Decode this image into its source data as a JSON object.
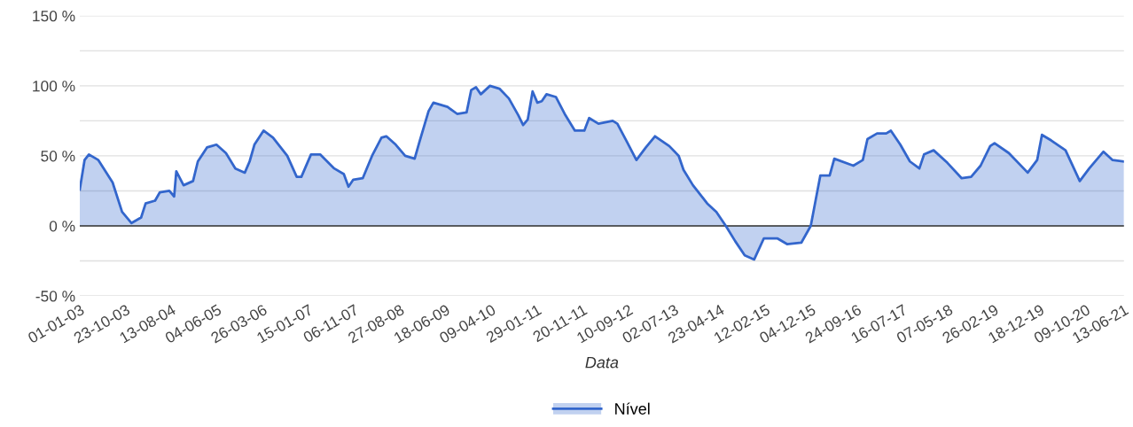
{
  "chart_data": {
    "type": "area",
    "xlabel": "Data",
    "legend": "bottom",
    "grid": "y",
    "x": [
      "2003-01-01",
      "2003-02",
      "2003-03",
      "2003-05",
      "2003-08",
      "2003-10",
      "2003-12",
      "2004-02",
      "2004-03",
      "2004-05",
      "2004-06",
      "2004-08",
      "2004-09-01",
      "2004-09-15",
      "2004-11",
      "2005-01",
      "2005-02",
      "2005-04",
      "2005-05",
      "2005-06",
      "2005-08",
      "2005-10",
      "2005-12",
      "2006-01",
      "2006-02",
      "2006-04",
      "2006-06",
      "2006-09",
      "2006-11",
      "2006-12",
      "2007-02",
      "2007-04",
      "2007-07",
      "2007-09",
      "2007-10",
      "2007-11",
      "2008-01",
      "2008-03",
      "2008-05",
      "2008-06",
      "2008-08",
      "2008-10",
      "2008-12",
      "2009-01",
      "2009-03",
      "2009-04",
      "2009-07",
      "2009-09",
      "2009-11",
      "2009-12",
      "2010-01",
      "2010-02",
      "2010-04",
      "2010-06",
      "2010-08",
      "2010-10",
      "2010-11",
      "2010-12",
      "2011-01",
      "2011-02",
      "2011-03",
      "2011-04",
      "2011-06",
      "2011-08",
      "2011-10",
      "2011-12",
      "2012-01",
      "2012-03",
      "2012-06",
      "2012-07",
      "2012-09",
      "2012-11",
      "2013-01",
      "2013-03",
      "2013-06",
      "2013-08",
      "2013-09",
      "2013-11",
      "2014-02",
      "2014-04",
      "2014-06",
      "2014-08",
      "2014-10",
      "2014-12",
      "2015-02",
      "2015-05",
      "2015-07",
      "2015-10",
      "2015-12",
      "2016-01",
      "2016-02",
      "2016-04",
      "2016-05",
      "2016-09",
      "2016-11",
      "2016-12",
      "2017-02",
      "2017-04",
      "2017-05",
      "2017-07",
      "2017-09",
      "2017-11",
      "2017-12",
      "2018-02",
      "2018-05",
      "2018-08",
      "2018-10",
      "2018-12",
      "2019-02",
      "2019-03",
      "2019-06",
      "2019-10",
      "2019-12",
      "2020-01",
      "2020-03",
      "2020-06",
      "2020-09",
      "2020-11",
      "2021-02",
      "2021-04",
      "2021-06-13"
    ],
    "series": [
      {
        "name": "Nível",
        "color": "#3366cc",
        "values": [
          26,
          47,
          51,
          47,
          31,
          10,
          2,
          6,
          16,
          18,
          24,
          25,
          21,
          39,
          29,
          32,
          46,
          56,
          57,
          58,
          52,
          41,
          38,
          46,
          58,
          68,
          63,
          50,
          35,
          35,
          51,
          51,
          41,
          37,
          28,
          33,
          34,
          50,
          63,
          64,
          58,
          50,
          48,
          60,
          82,
          88,
          85,
          80,
          81,
          97,
          99,
          94,
          100,
          98,
          91,
          79,
          72,
          76,
          96,
          88,
          89,
          94,
          92,
          79,
          68,
          68,
          77,
          73,
          75,
          73,
          60,
          47,
          56,
          64,
          57,
          50,
          40,
          29,
          16,
          10,
          0,
          -11,
          -21,
          -24,
          -9,
          -9,
          -13,
          -12,
          0,
          18,
          36,
          36,
          48,
          43,
          47,
          62,
          66,
          66,
          68,
          58,
          46,
          41,
          51,
          54,
          45,
          34,
          35,
          43,
          57,
          59,
          52,
          38,
          47,
          65,
          61,
          54,
          32,
          41,
          53,
          47,
          46
        ]
      }
    ],
    "ylim": [
      -50,
      150
    ],
    "yticks": [
      {
        "value": -50,
        "label": "-50 %"
      },
      {
        "value": -25,
        "label": null
      },
      {
        "value": 0,
        "label": "0 %"
      },
      {
        "value": 25,
        "label": null
      },
      {
        "value": 50,
        "label": "50 %"
      },
      {
        "value": 75,
        "label": null
      },
      {
        "value": 100,
        "label": "100 %"
      },
      {
        "value": 125,
        "label": null
      },
      {
        "value": 150,
        "label": "150 %"
      }
    ],
    "xlim": [
      "2003-01-01",
      "2021-06-13"
    ],
    "xticks": [
      {
        "value": "2003-01-01",
        "label": "01-01-03"
      },
      {
        "value": "2003-10-23",
        "label": "23-10-03"
      },
      {
        "value": "2004-08-13",
        "label": "13-08-04"
      },
      {
        "value": "2005-06-04",
        "label": "04-06-05"
      },
      {
        "value": "2006-03-26",
        "label": "26-03-06"
      },
      {
        "value": "2007-01-15",
        "label": "15-01-07"
      },
      {
        "value": "2007-11-06",
        "label": "06-11-07"
      },
      {
        "value": "2008-08-27",
        "label": "27-08-08"
      },
      {
        "value": "2009-06-18",
        "label": "18-06-09"
      },
      {
        "value": "2010-04-09",
        "label": "09-04-10"
      },
      {
        "value": "2011-01-29",
        "label": "29-01-11"
      },
      {
        "value": "2011-11-20",
        "label": "20-11-11"
      },
      {
        "value": "2012-09-10",
        "label": "10-09-12"
      },
      {
        "value": "2013-07-02",
        "label": "02-07-13"
      },
      {
        "value": "2014-04-23",
        "label": "23-04-14"
      },
      {
        "value": "2015-02-12",
        "label": "12-02-15"
      },
      {
        "value": "2015-12-04",
        "label": "04-12-15"
      },
      {
        "value": "2016-09-24",
        "label": "24-09-16"
      },
      {
        "value": "2017-07-16",
        "label": "16-07-17"
      },
      {
        "value": "2018-05-07",
        "label": "07-05-18"
      },
      {
        "value": "2019-02-26",
        "label": "26-02-19"
      },
      {
        "value": "2019-12-18",
        "label": "18-12-19"
      },
      {
        "value": "2020-10-09",
        "label": "09-10-20"
      },
      {
        "value": "2021-06-13",
        "label": "13-06-21"
      }
    ],
    "ref_lines": [
      {
        "axis": "y",
        "value": 0,
        "color": "#333333"
      }
    ]
  }
}
